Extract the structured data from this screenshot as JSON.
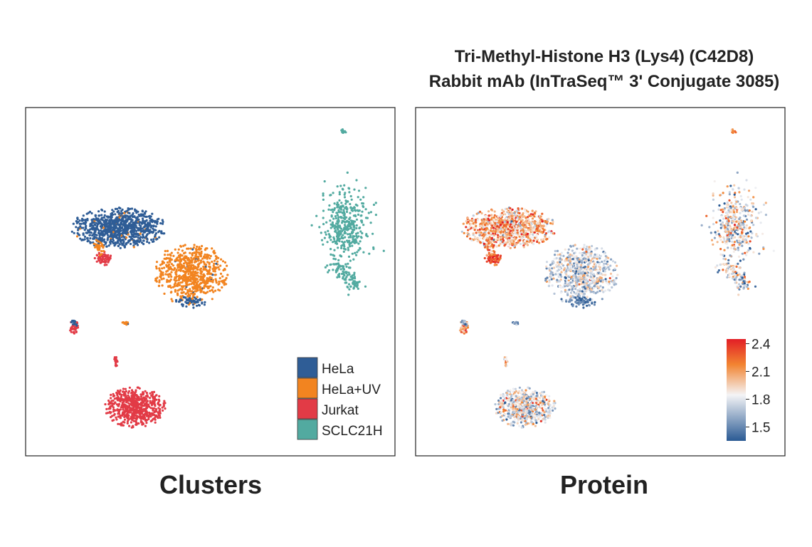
{
  "chart_data": [
    {
      "type": "scatter",
      "panel_title": "Clusters",
      "legend_placement": "bottom-right",
      "grid": false,
      "axes_visible": false,
      "legend": [
        {
          "name": "HeLa",
          "color": "#2f5d96"
        },
        {
          "name": "HeLa+UV",
          "color": "#f28420"
        },
        {
          "name": "Jurkat",
          "color": "#e23b46"
        },
        {
          "name": "SCLC21H",
          "color": "#52aaa0"
        }
      ]
    },
    {
      "type": "scatter",
      "title_line1": "Tri-Methyl-Histone H3 (Lys4) (C42D8)",
      "title_line2": "Rabbit mAb (InTraSeq™ 3' Conjugate 3085)",
      "panel_title": "Protein",
      "colorbar_placement": "bottom-right",
      "grid": false,
      "axes_visible": false,
      "colorbar": {
        "range": [
          1.35,
          2.45
        ],
        "ticks": [
          {
            "value": 2.4,
            "label": "2.4"
          },
          {
            "value": 2.1,
            "label": "2.1"
          },
          {
            "value": 1.8,
            "label": "1.8"
          },
          {
            "value": 1.5,
            "label": "1.5"
          }
        ],
        "colors": [
          "#2a5a94",
          "#f4f4f6",
          "#f28431",
          "#e21e26"
        ]
      }
    }
  ]
}
